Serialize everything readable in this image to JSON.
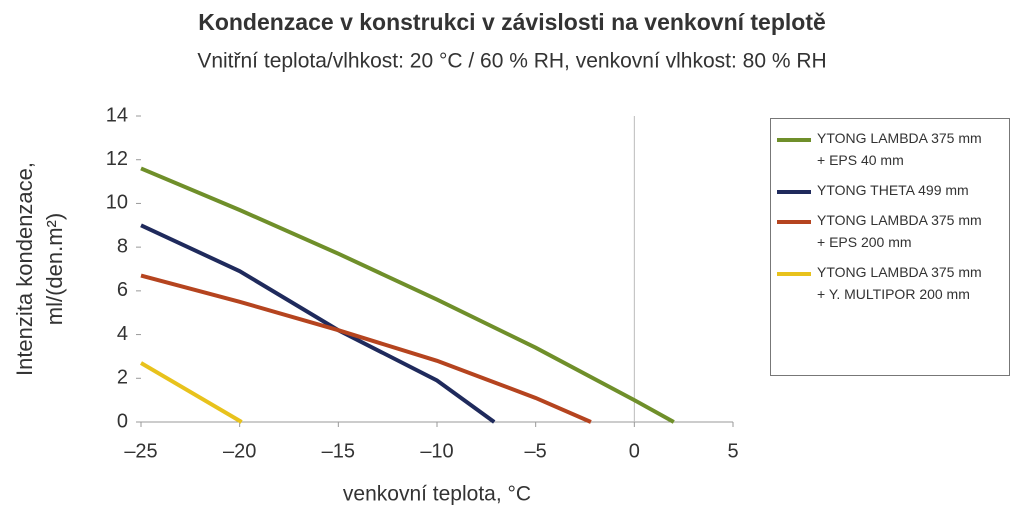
{
  "chart_data": {
    "type": "line",
    "title": "Kondenzace v konstrukci v závislosti na venkovní teplotě",
    "subtitle": "Vnitřní teplota/vlhkost: 20 °C / 60 % RH, venkovní vlhkost: 80 % RH",
    "xlabel": "venkovní teplota, °C",
    "ylabel": "Intenzita kondenzace,\nml/(den.m²)",
    "xlim": [
      -25,
      5
    ],
    "xticks": [
      {
        "value": -25,
        "label": "–25"
      },
      {
        "value": -20,
        "label": "–20"
      },
      {
        "value": -15,
        "label": "–15"
      },
      {
        "value": -10,
        "label": "–10"
      },
      {
        "value": -5,
        "label": "–5"
      },
      0,
      5
    ],
    "ylim": [
      0,
      14
    ],
    "yticks": [
      0,
      2,
      4,
      6,
      8,
      10,
      12,
      14
    ],
    "legend": "right",
    "series": [
      {
        "name": "YTONG LAMBDA 375 mm\n+ EPS 40 mm",
        "color": "#6f8f2a",
        "x": [
          -25,
          -20,
          -15,
          -10,
          -5,
          0,
          2
        ],
        "values": [
          11.6,
          9.7,
          7.7,
          5.6,
          3.4,
          1.0,
          0
        ]
      },
      {
        "name": "YTONG THETA 499 mm",
        "color": "#1f2a5c",
        "x": [
          -25,
          -20,
          -15,
          -10,
          -7.1
        ],
        "values": [
          9.0,
          6.9,
          4.2,
          1.9,
          0
        ]
      },
      {
        "name": "YTONG LAMBDA 375 mm\n+ EPS 200 mm",
        "color": "#b5441f",
        "x": [
          -25,
          -20,
          -15,
          -10,
          -5,
          -2.2
        ],
        "values": [
          6.7,
          5.5,
          4.2,
          2.8,
          1.1,
          0
        ]
      },
      {
        "name": "YTONG LAMBDA 375 mm\n+ Y. MULTIPOR 200 mm",
        "color": "#e8c21c",
        "x": [
          -25,
          -19.9
        ],
        "values": [
          2.7,
          0
        ]
      }
    ]
  }
}
